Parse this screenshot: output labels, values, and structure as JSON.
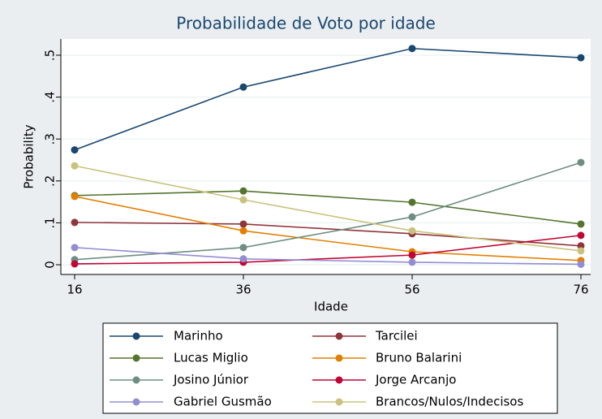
{
  "chart_data": {
    "type": "line",
    "title": "Probabilidade de Voto por idade",
    "x_label": "Idade",
    "y_label": "Probability",
    "x": [
      16,
      36,
      56,
      76
    ],
    "xlim": [
      16,
      76
    ],
    "xticks": [
      16,
      36,
      56,
      76
    ],
    "ylim": [
      0,
      0.5
    ],
    "yticks": [
      0,
      {
        "value": 0.1,
        "label": ".1"
      },
      {
        "value": 0.2,
        "label": ".2"
      },
      {
        "value": 0.3,
        "label": ".3"
      },
      {
        "value": 0.4,
        "label": ".4"
      },
      {
        "value": 0.5,
        "label": ".5"
      }
    ],
    "grid": true,
    "legend": "bottom",
    "series": [
      {
        "name": "Marinho",
        "color": "#1a476f",
        "values": [
          0.274,
          0.424,
          0.516,
          0.494
        ]
      },
      {
        "name": "Tarcilei",
        "color": "#90353b",
        "values": [
          0.101,
          0.097,
          0.074,
          0.045
        ]
      },
      {
        "name": "Lucas Miglio",
        "color": "#55752f",
        "values": [
          0.165,
          0.176,
          0.149,
          0.097
        ]
      },
      {
        "name": "Bruno Balarini",
        "color": "#e37e00",
        "values": [
          0.163,
          0.081,
          0.031,
          0.01
        ]
      },
      {
        "name": "Josino Júnior",
        "color": "#6e8e84",
        "values": [
          0.012,
          0.041,
          0.114,
          0.244
        ]
      },
      {
        "name": "Jorge Arcanjo",
        "color": "#c10534",
        "values": [
          0.002,
          0.006,
          0.023,
          0.07
        ]
      },
      {
        "name": "Gabriel Gusmão",
        "color": "#938dd2",
        "values": [
          0.041,
          0.014,
          0.006,
          0.001
        ]
      },
      {
        "name": "Brancos/Nulos/Indecisos",
        "color": "#cac27e",
        "values": [
          0.236,
          0.155,
          0.081,
          0.033
        ]
      }
    ]
  }
}
